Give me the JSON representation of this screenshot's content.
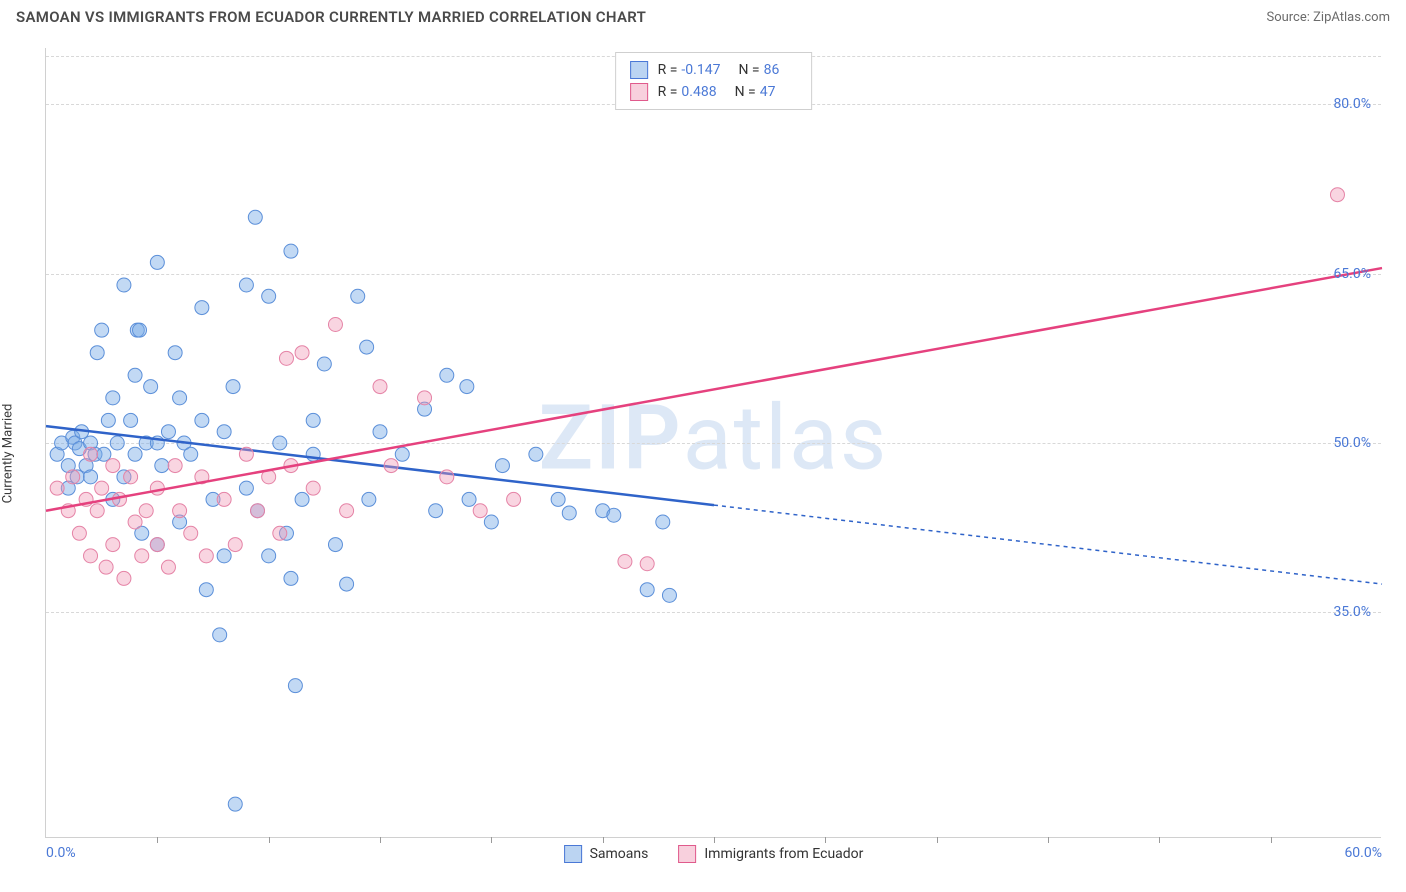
{
  "title": "SAMOAN VS IMMIGRANTS FROM ECUADOR CURRENTLY MARRIED CORRELATION CHART",
  "source": "Source: ZipAtlas.com",
  "watermark_a": "ZIP",
  "watermark_b": "atlas",
  "chart": {
    "type": "scatter",
    "y_label": "Currently Married",
    "background_color": "#ffffff",
    "grid_color": "#d8d8d8",
    "axis_color": "#cfcfcf",
    "tick_label_color": "#4a78d6",
    "xlim": [
      0,
      60
    ],
    "ylim": [
      15,
      85
    ],
    "x_ticks": [
      0,
      60
    ],
    "x_tick_labels": [
      "0.0%",
      "60.0%"
    ],
    "x_minor_ticks": [
      5,
      10,
      15,
      20,
      25,
      30,
      35,
      40,
      45,
      50,
      55
    ],
    "y_ticks": [
      35,
      50,
      65,
      80
    ],
    "y_tick_labels": [
      "35.0%",
      "50.0%",
      "65.0%",
      "80.0%"
    ],
    "marker_radius": 7,
    "marker_stroke_width": 1,
    "line_width": 2.5,
    "dash_pattern": "4 4",
    "series": [
      {
        "id": "samoans",
        "name": "Samoans",
        "fill": "rgba(120,170,230,0.45)",
        "stroke": "#5b8fd9",
        "line_color": "#2f63c9",
        "R": "-0.147",
        "N": "86",
        "trend": {
          "x1": 0,
          "y1": 51.5,
          "x2": 60,
          "y2": 37.5,
          "solid_until_x": 30
        },
        "points": [
          [
            0.5,
            49
          ],
          [
            0.7,
            50
          ],
          [
            1,
            46
          ],
          [
            1,
            48
          ],
          [
            1.2,
            50.5
          ],
          [
            1.3,
            50
          ],
          [
            1.4,
            47
          ],
          [
            1.5,
            49.5
          ],
          [
            1.6,
            51
          ],
          [
            1.8,
            48
          ],
          [
            2,
            50
          ],
          [
            2,
            47
          ],
          [
            2.2,
            49
          ],
          [
            2.3,
            58
          ],
          [
            2.5,
            60
          ],
          [
            2.6,
            49
          ],
          [
            2.8,
            52
          ],
          [
            3,
            54
          ],
          [
            3,
            45
          ],
          [
            3.2,
            50
          ],
          [
            3.5,
            64
          ],
          [
            3.5,
            47
          ],
          [
            3.8,
            52
          ],
          [
            4,
            56
          ],
          [
            4,
            49
          ],
          [
            4.1,
            60
          ],
          [
            4.2,
            60
          ],
          [
            4.3,
            42
          ],
          [
            4.5,
            50
          ],
          [
            4.7,
            55
          ],
          [
            5,
            66
          ],
          [
            5,
            50
          ],
          [
            5,
            41
          ],
          [
            5.2,
            48
          ],
          [
            5.5,
            51
          ],
          [
            5.8,
            58
          ],
          [
            6,
            54
          ],
          [
            6,
            43
          ],
          [
            6.2,
            50
          ],
          [
            6.5,
            49
          ],
          [
            7,
            62
          ],
          [
            7,
            52
          ],
          [
            7.2,
            37
          ],
          [
            7.5,
            45
          ],
          [
            7.8,
            33
          ],
          [
            8,
            51
          ],
          [
            8,
            40
          ],
          [
            8.4,
            55
          ],
          [
            8.5,
            18
          ],
          [
            9,
            46
          ],
          [
            9,
            64
          ],
          [
            9.4,
            70
          ],
          [
            9.5,
            44
          ],
          [
            10,
            63
          ],
          [
            10,
            40
          ],
          [
            10.5,
            50
          ],
          [
            10.8,
            42
          ],
          [
            11,
            67
          ],
          [
            11,
            38
          ],
          [
            11.5,
            45
          ],
          [
            12,
            52
          ],
          [
            12,
            49
          ],
          [
            12.5,
            57
          ],
          [
            13,
            41
          ],
          [
            13.5,
            37.5
          ],
          [
            14,
            63
          ],
          [
            14.4,
            58.5
          ],
          [
            14.5,
            45
          ],
          [
            15,
            51
          ],
          [
            16,
            49
          ],
          [
            17,
            53
          ],
          [
            17.5,
            44
          ],
          [
            18,
            56
          ],
          [
            18.9,
            55
          ],
          [
            19,
            45
          ],
          [
            20,
            43
          ],
          [
            20.5,
            48
          ],
          [
            22,
            49
          ],
          [
            23,
            45
          ],
          [
            23.5,
            43.8
          ],
          [
            25,
            44
          ],
          [
            25.5,
            43.6
          ],
          [
            27,
            37
          ],
          [
            27.7,
            43
          ],
          [
            28,
            36.5
          ],
          [
            11.2,
            28.5
          ]
        ]
      },
      {
        "id": "ecuador",
        "name": "Immigrants from Ecuador",
        "fill": "rgba(240,150,180,0.40)",
        "stroke": "#e583a6",
        "line_color": "#e5417e",
        "R": "0.488",
        "N": "47",
        "trend": {
          "x1": 0,
          "y1": 44,
          "x2": 60,
          "y2": 65.5,
          "solid_until_x": 60
        },
        "points": [
          [
            0.5,
            46
          ],
          [
            1,
            44
          ],
          [
            1.2,
            47
          ],
          [
            1.5,
            42
          ],
          [
            1.8,
            45
          ],
          [
            2,
            49
          ],
          [
            2,
            40
          ],
          [
            2.3,
            44
          ],
          [
            2.5,
            46
          ],
          [
            2.7,
            39
          ],
          [
            3,
            41
          ],
          [
            3,
            48
          ],
          [
            3.3,
            45
          ],
          [
            3.5,
            38
          ],
          [
            3.8,
            47
          ],
          [
            4,
            43
          ],
          [
            4.3,
            40
          ],
          [
            4.5,
            44
          ],
          [
            5,
            46
          ],
          [
            5,
            41
          ],
          [
            5.5,
            39
          ],
          [
            5.8,
            48
          ],
          [
            6,
            44
          ],
          [
            6.5,
            42
          ],
          [
            7,
            47
          ],
          [
            7.2,
            40
          ],
          [
            8,
            45
          ],
          [
            8.5,
            41
          ],
          [
            9,
            49
          ],
          [
            9.5,
            44
          ],
          [
            10,
            47
          ],
          [
            10.5,
            42
          ],
          [
            10.8,
            57.5
          ],
          [
            11,
            48
          ],
          [
            11.5,
            58
          ],
          [
            12,
            46
          ],
          [
            13,
            60.5
          ],
          [
            13.5,
            44
          ],
          [
            15,
            55
          ],
          [
            15.5,
            48
          ],
          [
            17,
            54
          ],
          [
            18,
            47
          ],
          [
            19.5,
            44
          ],
          [
            21,
            45
          ],
          [
            26,
            39.5
          ],
          [
            27,
            39.3
          ],
          [
            58,
            72
          ]
        ]
      }
    ],
    "legend_top": [
      {
        "swatch": "blue",
        "R": "-0.147",
        "N": "86"
      },
      {
        "swatch": "pink",
        "R": "0.488",
        "N": "47"
      }
    ],
    "legend_bottom": [
      {
        "swatch": "blue",
        "label": "Samoans"
      },
      {
        "swatch": "pink",
        "label": "Immigrants from Ecuador"
      }
    ]
  }
}
